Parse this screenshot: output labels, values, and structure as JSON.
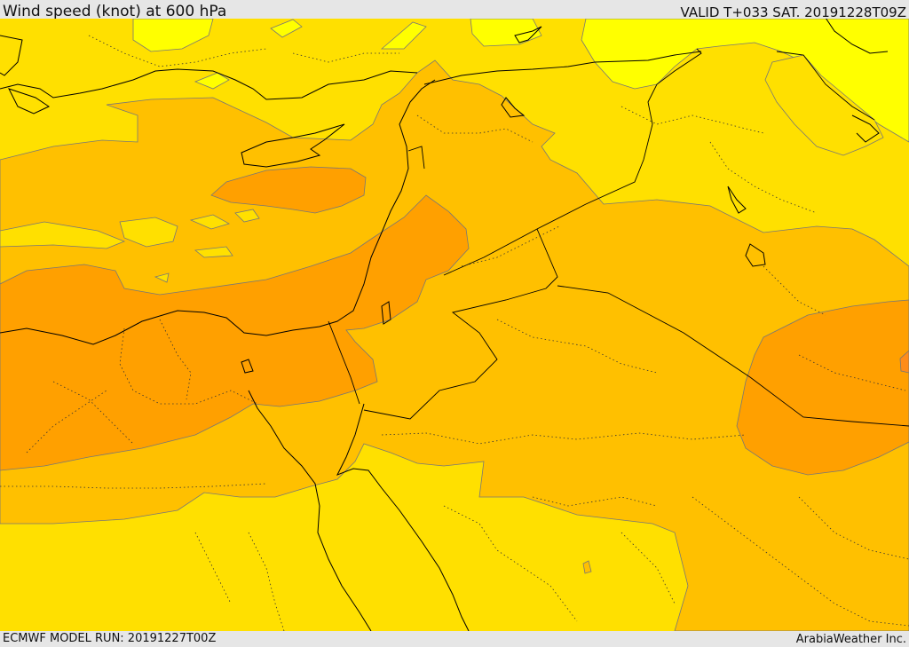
{
  "header": {
    "title": "Wind speed (knot) at 600 hPa",
    "valid": "VALID T+033 SAT. 20191228T09Z"
  },
  "footer": {
    "model_run": "ECMWF MODEL RUN: 20191227T00Z",
    "credit": "ArabiaWeather Inc."
  },
  "colors": {
    "lightest_band": "#ffff00",
    "light_band": "#ffe000",
    "mid_band": "#ffc000",
    "strong_band": "#ffa000",
    "strongest_core": "#ff8c1a",
    "borders": "#000000"
  }
}
